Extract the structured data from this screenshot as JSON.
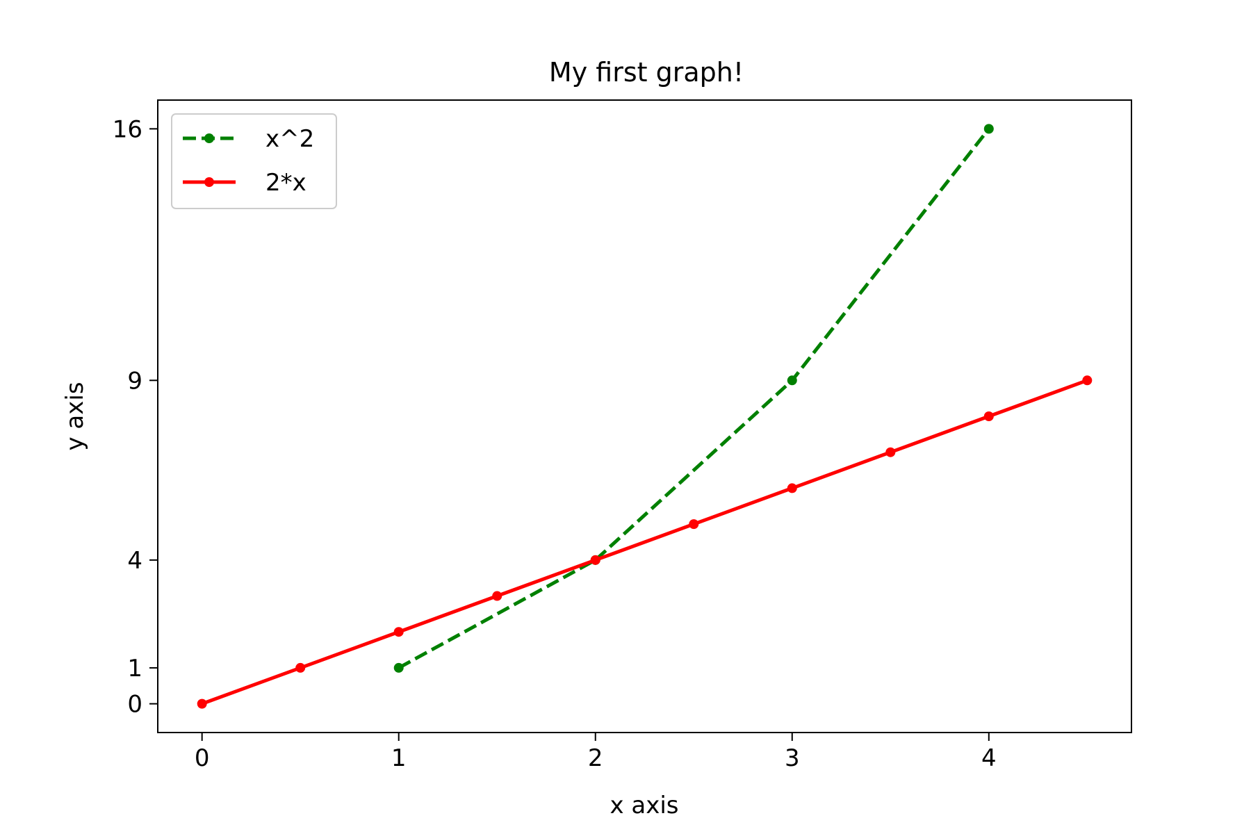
{
  "chart_data": {
    "type": "line",
    "title": "My first graph!",
    "xlabel": "x axis",
    "ylabel": "y axis",
    "xlim": [
      -0.225,
      4.725
    ],
    "ylim": [
      -0.8,
      16.8
    ],
    "xticks": [
      0,
      1,
      2,
      3,
      4
    ],
    "xtick_labels": [
      "0",
      "1",
      "2",
      "3",
      "4"
    ],
    "yticks": [
      0,
      1,
      4,
      9,
      16
    ],
    "ytick_labels": [
      "0",
      "1",
      "4",
      "9",
      "16"
    ],
    "grid": false,
    "legend_position": "top-left",
    "series": [
      {
        "name": "x^2",
        "color": "#008000",
        "line_style": "dashed",
        "marker": "circle",
        "x": [
          1,
          2,
          3,
          4
        ],
        "y": [
          1,
          4,
          9,
          16
        ]
      },
      {
        "name": "2*x",
        "color": "#ff0000",
        "line_style": "solid",
        "marker": "circle",
        "x": [
          0,
          0.5,
          1,
          1.5,
          2,
          2.5,
          3,
          3.5,
          4,
          4.5
        ],
        "y": [
          0,
          1,
          2,
          3,
          4,
          5,
          6,
          7,
          8,
          9
        ]
      }
    ]
  }
}
